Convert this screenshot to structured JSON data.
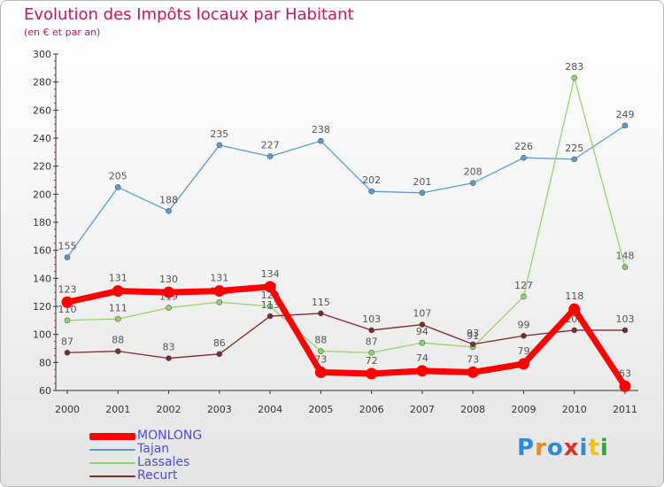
{
  "title": "Evolution des Impôts locaux par Habitant",
  "subtitle": "(en € et par an)",
  "logo": {
    "text": "Proxiti",
    "letter_colors": [
      "#2e8bd6",
      "#f08a1c",
      "#2e8bd6",
      "#d8342c",
      "#2e8bd6",
      "#f0c020",
      "#3aa03a"
    ]
  },
  "chart_data": {
    "type": "line",
    "x": [
      "2000",
      "2001",
      "2002",
      "2003",
      "2004",
      "2005",
      "2006",
      "2007",
      "2008",
      "2009",
      "2010",
      "2011"
    ],
    "ylim": [
      60,
      300
    ],
    "yticks": [
      60,
      80,
      100,
      120,
      140,
      160,
      180,
      200,
      220,
      240,
      260,
      280,
      300
    ],
    "grid": false,
    "legend_placement": "bottom-left",
    "series": [
      {
        "name": "Tajan",
        "color": "#5c9ccc",
        "values": [
          155,
          205,
          188,
          235,
          227,
          238,
          202,
          201,
          208,
          226,
          225,
          249
        ]
      },
      {
        "name": "Lassales",
        "color": "#95d46c",
        "values": [
          110,
          111,
          119,
          123,
          120,
          88,
          87,
          94,
          91,
          127,
          283,
          148
        ]
      },
      {
        "name": "Recurt",
        "color": "#7a2b2b",
        "values": [
          87,
          88,
          83,
          86,
          113,
          115,
          103,
          107,
          93,
          99,
          103,
          103
        ]
      },
      {
        "name": "MONLONG",
        "color": "#ff0000",
        "values": [
          123,
          131,
          130,
          131,
          134,
          73,
          72,
          74,
          73,
          79,
          118,
          63
        ]
      }
    ],
    "legend_order": [
      "MONLONG",
      "Tajan",
      "Lassales",
      "Recurt"
    ]
  }
}
